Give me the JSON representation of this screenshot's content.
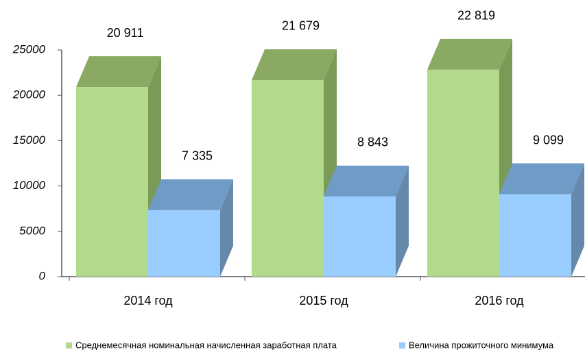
{
  "chart_data": {
    "type": "bar3d",
    "categories": [
      "2014 год",
      "2015 год",
      "2016 год"
    ],
    "series": [
      {
        "name": "Среднемесячная номинальная начисленная заработная плата",
        "color": "#b3d98c",
        "top_color": "#8aaa64",
        "side_color": "#7a9a58",
        "values": [
          20911,
          21679,
          22819
        ],
        "value_labels": [
          "20 911",
          "21 679",
          "22 819"
        ]
      },
      {
        "name": "Величина прожиточного минимума",
        "color": "#99ccff",
        "top_color": "#6f9bc7",
        "side_color": "#6688aa",
        "values": [
          7335,
          8843,
          9099
        ],
        "value_labels": [
          "7 335",
          "8 843",
          "9 099"
        ]
      }
    ],
    "ylim": [
      0,
      25000
    ],
    "yticks": [
      0,
      5000,
      10000,
      15000,
      20000,
      25000
    ],
    "legend": "bottom"
  }
}
